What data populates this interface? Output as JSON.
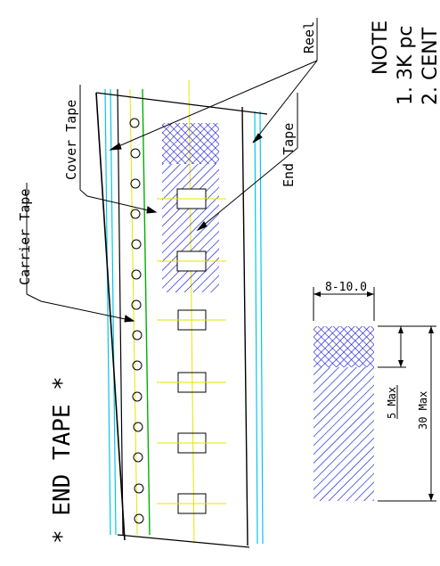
{
  "labels": {
    "end_tape_title": "* END TAPE *",
    "carrier_tape": "Carrier Tape",
    "cover_tape": "Cover Tape",
    "reel": "Reel",
    "end_tape": "End Tape"
  },
  "note": {
    "heading": "NOTE",
    "item_1": "1. 3K pc",
    "item_2": "2. CENT"
  },
  "dimensions": {
    "width": "8-10.0",
    "max_short": "5 Max",
    "max_long": "30 Max"
  },
  "colors": {
    "outline": "#000000",
    "sprocket_lines": "#00c8e6",
    "carrier_line": "#00b000",
    "center_lines": "#e6e600",
    "hatch": "#1414d2"
  }
}
